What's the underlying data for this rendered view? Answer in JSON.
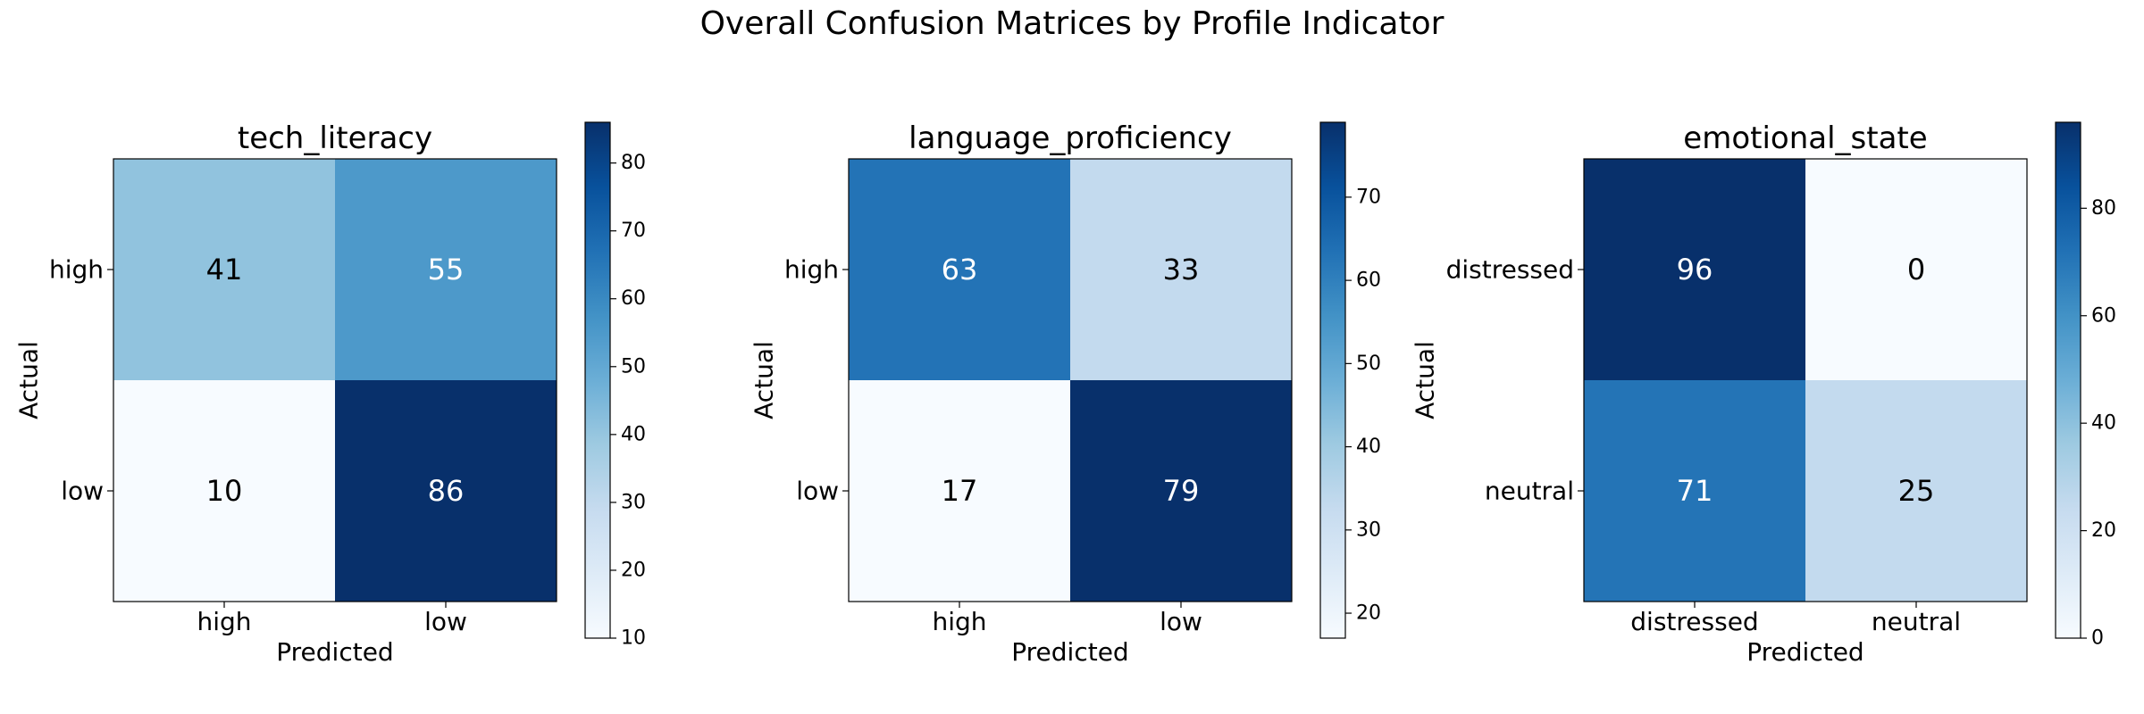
{
  "figure": {
    "title": "Overall Confusion Matrices by Profile Indicator"
  },
  "chart_data": [
    {
      "type": "heatmap",
      "title": "tech_literacy",
      "xlabel": "Predicted",
      "ylabel": "Actual",
      "x_categories": [
        "high",
        "low"
      ],
      "y_categories": [
        "high",
        "low"
      ],
      "values": [
        [
          41,
          55
        ],
        [
          10,
          86
        ]
      ],
      "colormap": "Blues",
      "color_range": [
        10,
        86
      ],
      "colorbar_ticks": [
        10,
        20,
        30,
        40,
        50,
        60,
        70,
        80
      ]
    },
    {
      "type": "heatmap",
      "title": "language_proficiency",
      "xlabel": "Predicted",
      "ylabel": "Actual",
      "x_categories": [
        "high",
        "low"
      ],
      "y_categories": [
        "high",
        "low"
      ],
      "values": [
        [
          63,
          33
        ],
        [
          17,
          79
        ]
      ],
      "colormap": "Blues",
      "color_range": [
        17,
        79
      ],
      "colorbar_ticks": [
        20,
        30,
        40,
        50,
        60,
        70
      ]
    },
    {
      "type": "heatmap",
      "title": "emotional_state",
      "xlabel": "Predicted",
      "ylabel": "Actual",
      "x_categories": [
        "distressed",
        "neutral"
      ],
      "y_categories": [
        "distressed",
        "neutral"
      ],
      "values": [
        [
          96,
          0
        ],
        [
          71,
          25
        ]
      ],
      "colormap": "Blues",
      "color_range": [
        0,
        96
      ],
      "colorbar_ticks": [
        0,
        20,
        40,
        60,
        80
      ]
    }
  ]
}
